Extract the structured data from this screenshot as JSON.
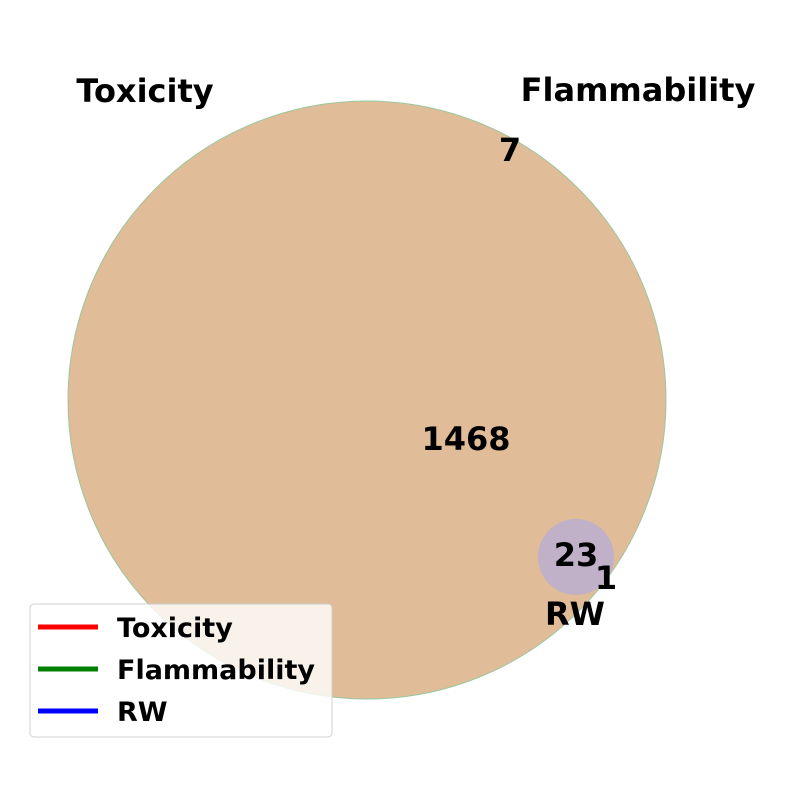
{
  "chart_data": {
    "type": "venn",
    "sets": [
      {
        "name": "Toxicity",
        "color": "#ff0000"
      },
      {
        "name": "Flammability",
        "color": "#008000"
      },
      {
        "name": "RW",
        "color": "#0000ff"
      }
    ],
    "regions": [
      {
        "sets": [
          "Flammability"
        ],
        "value": "7"
      },
      {
        "sets": [
          "Toxicity",
          "Flammability"
        ],
        "value": "1468"
      },
      {
        "sets": [
          "Toxicity",
          "Flammability",
          "RW"
        ],
        "value": "23"
      },
      {
        "sets": [
          "Toxicity",
          "Flammability"
        ],
        "value": "1",
        "note_region": "outside-rw-right"
      }
    ],
    "legend": {
      "placement": "lower-left",
      "entries": [
        "Toxicity",
        "Flammability",
        "RW"
      ]
    },
    "colors": {
      "overlap_fill": "#e0bc98",
      "rw_fill": "#c0b0c8",
      "flammability_edge": "#9cc79c"
    }
  }
}
